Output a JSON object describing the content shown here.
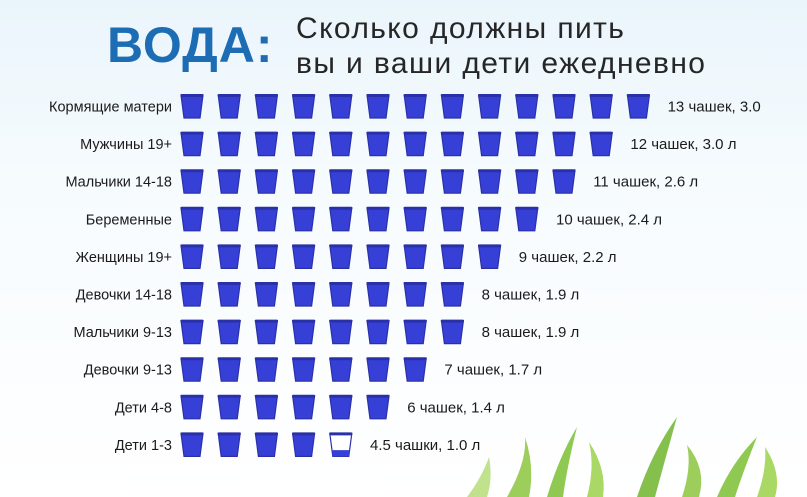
{
  "title": {
    "main": "ВОДА:",
    "subtitle_line1": "Сколько должны пить",
    "subtitle_line2": "вы и ваши дети ежедневно"
  },
  "colors": {
    "title_main": "#1c6db4",
    "cup_fill": "#3640d6",
    "cup_top": "#2a30a8",
    "cup_empty": "#ffffff",
    "text": "#1b1b1b"
  },
  "icon": "cup-icon",
  "chart_data": {
    "type": "pictograph",
    "unit_icon": "cup",
    "categories": [
      "Кормящие матери",
      "Мужчины 19+",
      "Мальчики 14-18",
      "Беременные",
      "Женщины 19+",
      "Девочки 14-18",
      "Мальчики 9-13",
      "Девочки 9-13",
      "Дети 4-8",
      "Дети 1-3"
    ],
    "series": [
      {
        "name": "чашек",
        "values": [
          13,
          12,
          11,
          10,
          9,
          8,
          8,
          7,
          6,
          4.5
        ]
      },
      {
        "name": "л",
        "values": [
          3.0,
          3.0,
          2.6,
          2.4,
          2.2,
          1.9,
          1.9,
          1.7,
          1.4,
          1.0
        ]
      }
    ],
    "value_labels": [
      "13 чашек, 3.0",
      "12 чашек, 3.0 л",
      "11 чашек, 2.6 л",
      "10 чашек, 2.4 л",
      "9 чашек, 2.2 л",
      "8 чашек, 1.9 л",
      "8 чашек, 1.9 л",
      "7 чашек, 1.7 л",
      "6 чашек, 1.4 л",
      "4.5 чашки, 1.0 л"
    ]
  }
}
